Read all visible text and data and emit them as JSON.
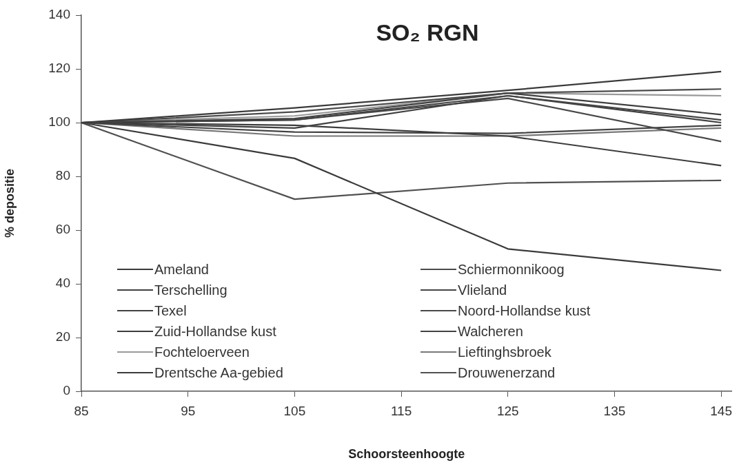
{
  "chart_data": {
    "type": "line",
    "title": "SO₂ RGN",
    "xlabel": "Schoorsteenhoogte",
    "ylabel": "% depositie",
    "x": [
      85,
      105,
      125,
      145
    ],
    "xlim": [
      85,
      146
    ],
    "xticks": [
      85,
      95,
      105,
      115,
      125,
      135,
      145
    ],
    "ylim": [
      0,
      140
    ],
    "yticks": [
      0,
      20,
      40,
      60,
      80,
      100,
      120,
      140
    ],
    "grid": false,
    "legend": "bottom left",
    "marker": "none",
    "line_style": "solid",
    "series": [
      {
        "name": "Ameland",
        "color": "#3a3a3a",
        "values": [
          100,
          105.5,
          112,
          119
        ]
      },
      {
        "name": "Schiermonnikoog",
        "color": "#4a4a4a",
        "values": [
          100,
          104,
          111,
          112.5
        ]
      },
      {
        "name": "Terschelling",
        "color": "#3f3f3f",
        "values": [
          100,
          101.5,
          111,
          103
        ]
      },
      {
        "name": "Vlieland",
        "color": "#454545",
        "values": [
          100,
          101,
          110,
          101
        ]
      },
      {
        "name": "Texel",
        "color": "#404040",
        "values": [
          100,
          98,
          110,
          100
        ]
      },
      {
        "name": "Noord-Hollandse kust",
        "color": "#484848",
        "values": [
          100,
          101,
          109,
          93
        ]
      },
      {
        "name": "Zuid-Hollandse kust",
        "color": "#3c3c3c",
        "values": [
          100,
          99,
          95,
          84
        ]
      },
      {
        "name": "Walcheren",
        "color": "#424242",
        "values": [
          100,
          96.5,
          96,
          99
        ]
      },
      {
        "name": "Fochteloerveen",
        "color": "#999999",
        "values": [
          100,
          102.5,
          111,
          110
        ]
      },
      {
        "name": "Lieftinghsbroek",
        "color": "#777777",
        "values": [
          100,
          95,
          95,
          98
        ]
      },
      {
        "name": "Drentsche Aa-gebied",
        "color": "#3a3a3a",
        "values": [
          100,
          86.7,
          53,
          45
        ]
      },
      {
        "name": "Drouwenerzand",
        "color": "#505050",
        "values": [
          100,
          71.5,
          77.5,
          78.5
        ]
      }
    ]
  }
}
